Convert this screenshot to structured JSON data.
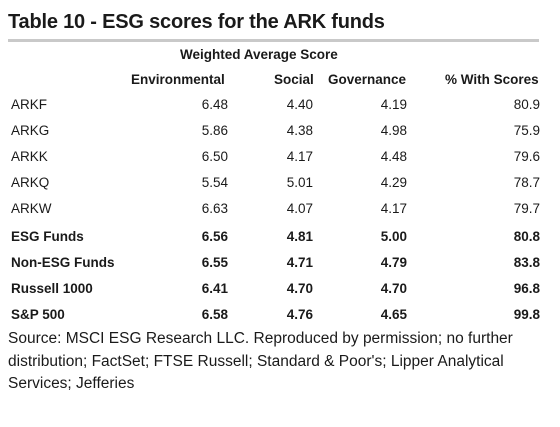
{
  "title": "Table 10 - ESG scores for the ARK funds",
  "group_header": "Weighted Average Score",
  "columns": [
    "Environmental",
    "Social",
    "Governance",
    "% With Scores"
  ],
  "rows": [
    {
      "name": "ARKF",
      "env": "6.48",
      "soc": "4.40",
      "gov": "4.19",
      "pct": "80.9",
      "bold": false
    },
    {
      "name": "ARKG",
      "env": "5.86",
      "soc": "4.38",
      "gov": "4.98",
      "pct": "75.9",
      "bold": false
    },
    {
      "name": "ARKK",
      "env": "6.50",
      "soc": "4.17",
      "gov": "4.48",
      "pct": "79.6",
      "bold": false
    },
    {
      "name": "ARKQ",
      "env": "5.54",
      "soc": "5.01",
      "gov": "4.29",
      "pct": "78.7",
      "bold": false
    },
    {
      "name": "ARKW",
      "env": "6.63",
      "soc": "4.07",
      "gov": "4.17",
      "pct": "79.7",
      "bold": false
    },
    {
      "name": "ESG Funds",
      "env": "6.56",
      "soc": "4.81",
      "gov": "5.00",
      "pct": "80.8",
      "bold": true
    },
    {
      "name": "Non-ESG Funds",
      "env": "6.55",
      "soc": "4.71",
      "gov": "4.79",
      "pct": "83.8",
      "bold": true
    },
    {
      "name": "Russell 1000",
      "env": "6.41",
      "soc": "4.70",
      "gov": "4.70",
      "pct": "96.8",
      "bold": true
    },
    {
      "name": "S&P 500",
      "env": "6.58",
      "soc": "4.76",
      "gov": "4.65",
      "pct": "99.8",
      "bold": true
    }
  ],
  "source": "Source: MSCI ESG Research LLC. Reproduced by permission; no further distribution; FactSet; FTSE Russell; Standard & Poor's; Lipper Analytical Services; Jefferies"
}
